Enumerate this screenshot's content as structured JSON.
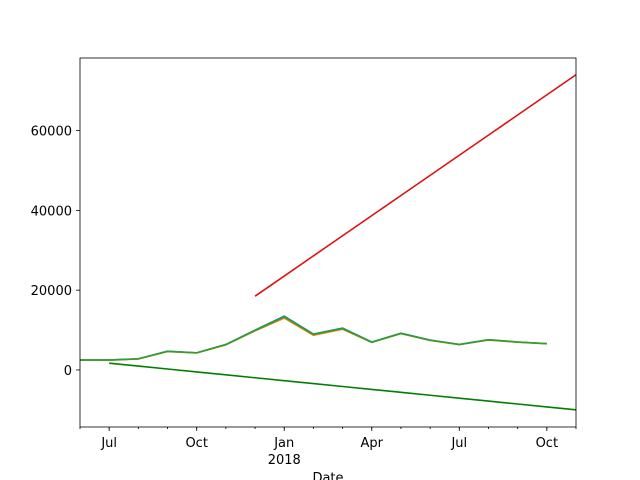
{
  "chart_data": {
    "type": "line",
    "x_label": "Date",
    "x": [
      "2017-06",
      "2017-07",
      "2017-08",
      "2017-09",
      "2017-10",
      "2017-11",
      "2017-12",
      "2018-01",
      "2018-02",
      "2018-03",
      "2018-04",
      "2018-05",
      "2018-06",
      "2018-07",
      "2018-08",
      "2018-09",
      "2018-10",
      "2018-11"
    ],
    "xlim": [
      "2017-06",
      "2018-11"
    ],
    "xticks": [
      {
        "value": "2017-07",
        "label": "Jul"
      },
      {
        "value": "2017-10",
        "label": "Oct"
      },
      {
        "value": "2018-01",
        "label": "Jan"
      },
      {
        "value": "2018-04",
        "label": "Apr"
      },
      {
        "value": "2018-07",
        "label": "Jul"
      },
      {
        "value": "2018-10",
        "label": "Oct"
      }
    ],
    "xtick_year_labels": [
      {
        "value": "2018-01",
        "label": "2018"
      }
    ],
    "ylim": [
      -14300,
      78200
    ],
    "yticks": [
      0,
      20000,
      40000,
      60000
    ],
    "series": [
      {
        "color": "#1f77b4",
        "values": [
          2500,
          2500,
          2800,
          4700,
          4300,
          6400,
          10000,
          13500,
          9000,
          10500,
          7000,
          9200,
          7500,
          6400,
          7600,
          7000,
          6600,
          null
        ]
      },
      {
        "color": "#ff7f0e",
        "values": [
          2450,
          2450,
          2750,
          4600,
          4250,
          6300,
          9800,
          13000,
          8700,
          10200,
          6900,
          9100,
          7400,
          6350,
          7500,
          6950,
          6550,
          null
        ]
      },
      {
        "color": "#2ca02c",
        "values": [
          2480,
          2480,
          2780,
          4650,
          4280,
          6350,
          9900,
          13300,
          8900,
          10400,
          6950,
          9150,
          7450,
          6380,
          7550,
          6980,
          6580,
          null
        ]
      },
      {
        "color": "#dd1111",
        "values": [
          null,
          null,
          null,
          null,
          null,
          null,
          18500,
          23545,
          28591,
          33636,
          38682,
          43727,
          48773,
          53818,
          58864,
          63909,
          68955,
          74000
        ]
      },
      {
        "color": "#008000",
        "values": [
          null,
          1700,
          969,
          238,
          -494,
          -1225,
          -1956,
          -2688,
          -3419,
          -4150,
          -4881,
          -5613,
          -6344,
          -7075,
          -7806,
          -8538,
          -9269,
          -10000
        ]
      }
    ]
  }
}
